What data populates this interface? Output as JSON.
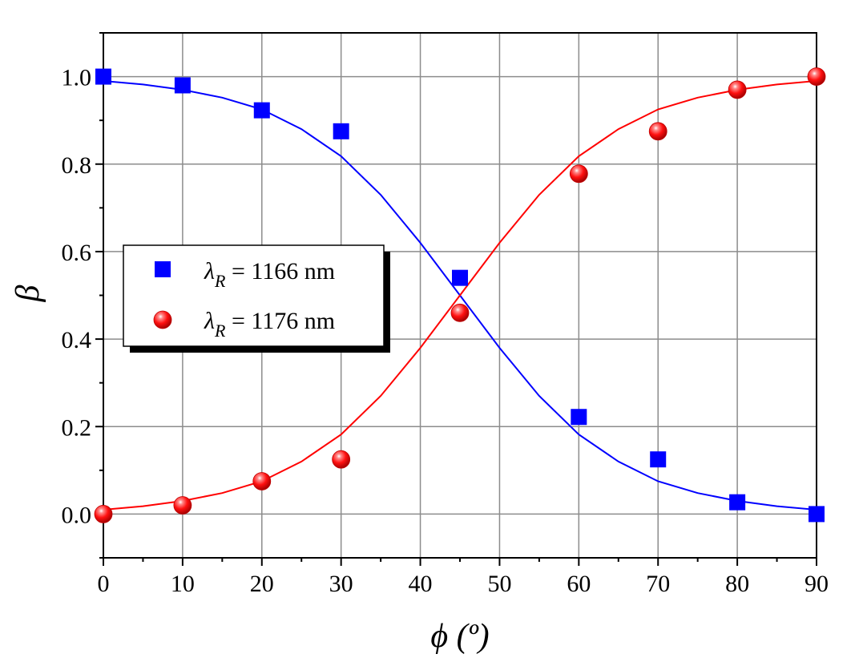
{
  "chart_data": {
    "type": "scatter",
    "xlabel": "ϕ (º)",
    "ylabel": "β",
    "xlim": [
      0,
      90
    ],
    "ylim": [
      -0.1,
      1.1
    ],
    "xticks": [
      "0",
      "10",
      "20",
      "30",
      "40",
      "50",
      "60",
      "70",
      "80",
      "90"
    ],
    "yticks": [
      "0.0",
      "0.2",
      "0.4",
      "0.6",
      "0.8",
      "1.0"
    ],
    "grid": true,
    "legend_position": "center-left",
    "series": [
      {
        "name": "λR = 1166 nm",
        "legend_symbol": "λ",
        "legend_subscript": "R",
        "legend_suffix": " = 1166 nm",
        "marker": "square",
        "color": "#0000ff",
        "points": [
          {
            "x": 0,
            "y": 1.0
          },
          {
            "x": 10,
            "y": 0.98
          },
          {
            "x": 20,
            "y": 0.923
          },
          {
            "x": 30,
            "y": 0.875
          },
          {
            "x": 45,
            "y": 0.54
          },
          {
            "x": 60,
            "y": 0.222
          },
          {
            "x": 70,
            "y": 0.125
          },
          {
            "x": 80,
            "y": 0.027
          },
          {
            "x": 90,
            "y": 0.0
          }
        ],
        "fit": [
          {
            "x": 0,
            "y": 0.99
          },
          {
            "x": 5,
            "y": 0.982
          },
          {
            "x": 10,
            "y": 0.97
          },
          {
            "x": 15,
            "y": 0.952
          },
          {
            "x": 20,
            "y": 0.925
          },
          {
            "x": 25,
            "y": 0.88
          },
          {
            "x": 30,
            "y": 0.818
          },
          {
            "x": 35,
            "y": 0.73
          },
          {
            "x": 40,
            "y": 0.62
          },
          {
            "x": 45,
            "y": 0.5
          },
          {
            "x": 50,
            "y": 0.38
          },
          {
            "x": 55,
            "y": 0.27
          },
          {
            "x": 60,
            "y": 0.182
          },
          {
            "x": 65,
            "y": 0.12
          },
          {
            "x": 70,
            "y": 0.075
          },
          {
            "x": 75,
            "y": 0.048
          },
          {
            "x": 80,
            "y": 0.03
          },
          {
            "x": 85,
            "y": 0.018
          },
          {
            "x": 90,
            "y": 0.01
          }
        ]
      },
      {
        "name": "λR = 1176 nm",
        "legend_symbol": "λ",
        "legend_subscript": "R",
        "legend_suffix": " = 1176 nm",
        "marker": "sphere",
        "color": "#ff0000",
        "points": [
          {
            "x": 0,
            "y": 0.0
          },
          {
            "x": 10,
            "y": 0.02
          },
          {
            "x": 20,
            "y": 0.075
          },
          {
            "x": 30,
            "y": 0.125
          },
          {
            "x": 45,
            "y": 0.46
          },
          {
            "x": 60,
            "y": 0.778
          },
          {
            "x": 70,
            "y": 0.875
          },
          {
            "x": 80,
            "y": 0.97
          },
          {
            "x": 90,
            "y": 1.0
          }
        ],
        "fit": [
          {
            "x": 0,
            "y": 0.01
          },
          {
            "x": 5,
            "y": 0.018
          },
          {
            "x": 10,
            "y": 0.03
          },
          {
            "x": 15,
            "y": 0.048
          },
          {
            "x": 20,
            "y": 0.075
          },
          {
            "x": 25,
            "y": 0.12
          },
          {
            "x": 30,
            "y": 0.182
          },
          {
            "x": 35,
            "y": 0.27
          },
          {
            "x": 40,
            "y": 0.38
          },
          {
            "x": 45,
            "y": 0.5
          },
          {
            "x": 50,
            "y": 0.62
          },
          {
            "x": 55,
            "y": 0.73
          },
          {
            "x": 60,
            "y": 0.818
          },
          {
            "x": 65,
            "y": 0.88
          },
          {
            "x": 70,
            "y": 0.925
          },
          {
            "x": 75,
            "y": 0.952
          },
          {
            "x": 80,
            "y": 0.97
          },
          {
            "x": 85,
            "y": 0.982
          },
          {
            "x": 90,
            "y": 0.99
          }
        ]
      }
    ]
  }
}
